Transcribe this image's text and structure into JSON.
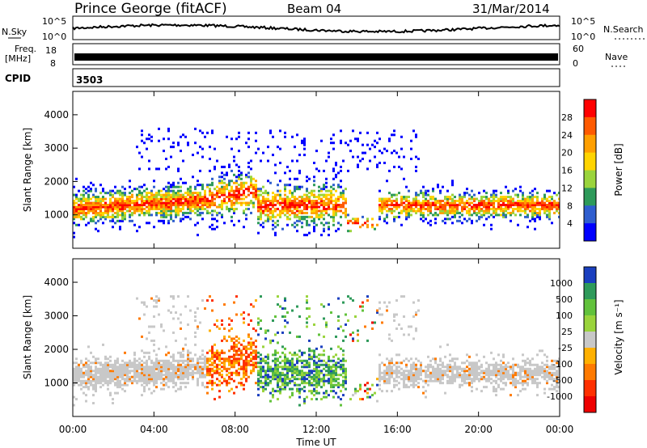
{
  "header": {
    "station": "Prince George (fitACF)",
    "beam": "Beam 04",
    "date": "31/Mar/2014"
  },
  "top_panels": {
    "nsky": {
      "label": "N.Sky",
      "ticks": [
        "10^5",
        "10^0"
      ]
    },
    "nsearch": {
      "label": "N.Search",
      "ticks": [
        "10^5",
        "10^0"
      ]
    },
    "freq": {
      "label_line1": "Freq.",
      "label_line2": "[MHz]",
      "ticks": [
        "18",
        "8"
      ]
    },
    "nave": {
      "label": "Nave",
      "ticks": [
        "60",
        "0"
      ]
    },
    "cpid": {
      "label": "CPID",
      "value": "3503"
    }
  },
  "chart_data": [
    {
      "type": "heatmap",
      "panel": "power",
      "ylabel": "Slant Range [km]",
      "ylim": [
        0,
        4700
      ],
      "y_ticks": [
        "1000",
        "2000",
        "3000",
        "4000"
      ],
      "colorbar": {
        "label": "Power [dB]",
        "ticks": [
          "28",
          "24",
          "20",
          "16",
          "12",
          "8",
          "4"
        ],
        "colors": [
          "#ff0000",
          "#ff5a00",
          "#ff9f00",
          "#ffd400",
          "#9ad43c",
          "#2e9a5a",
          "#2f5ecf",
          "#0000ff"
        ]
      },
      "bands": [
        {
          "x0": 0.5,
          "x1": 6.5,
          "y0": 500,
          "y1": 1500,
          "level": "high"
        },
        {
          "x0": 6.5,
          "x1": 13.5,
          "y0": 800,
          "y1": 2200,
          "level": "medium"
        },
        {
          "x0": 14.5,
          "x1": 24,
          "y0": 900,
          "y1": 1700,
          "level": "medium"
        }
      ]
    },
    {
      "type": "heatmap",
      "panel": "velocity",
      "ylabel": "Slant Range [km]",
      "ylim": [
        0,
        4700
      ],
      "y_ticks": [
        "1000",
        "2000",
        "3000",
        "4000"
      ],
      "xlabel": "Time UT",
      "x_ticks": [
        "00:00",
        "04:00",
        "08:00",
        "12:00",
        "16:00",
        "20:00",
        "00:00"
      ],
      "colorbar": {
        "label": "Velocity [m s⁻¹]",
        "ticks": [
          "1000",
          "500",
          "100",
          "25",
          "-25",
          "-100",
          "-500",
          "-1000"
        ],
        "colors": [
          "#1a3fbf",
          "#2e9a5a",
          "#62c23c",
          "#9ad43c",
          "#c8c8c8",
          "#ffb000",
          "#ff7a00",
          "#ff3000",
          "#ee0000"
        ]
      }
    }
  ]
}
